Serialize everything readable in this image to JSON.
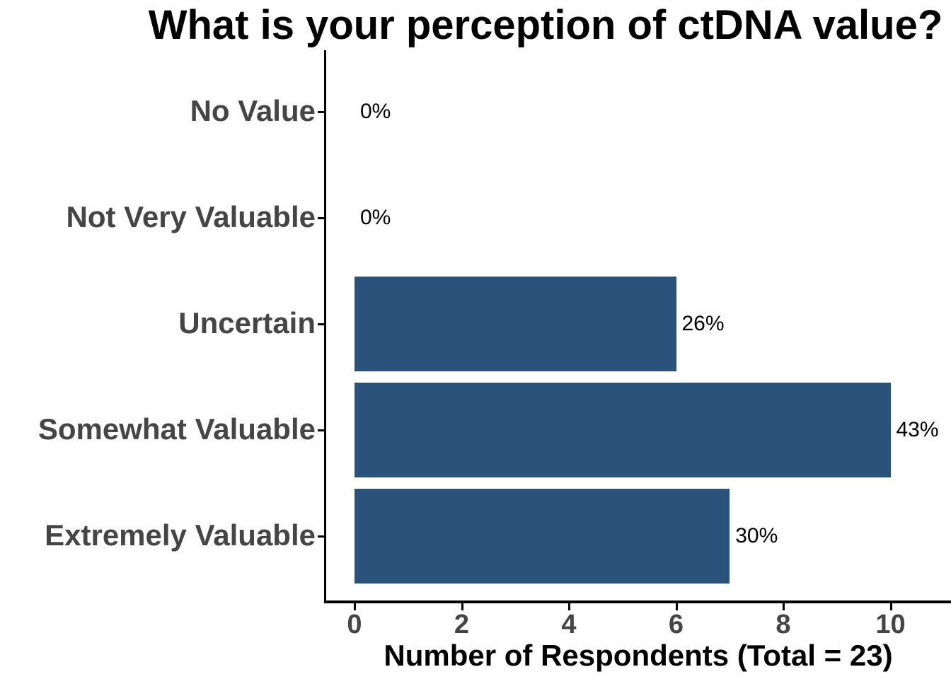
{
  "chart_data": {
    "type": "bar",
    "orientation": "horizontal",
    "title": "What is your perception of ctDNA value?",
    "xlabel": "Number of Respondents (Total = 23)",
    "ylabel": "",
    "total_respondents": 23,
    "categories": [
      "No Value",
      "Not Very Valuable",
      "Uncertain",
      "Somewhat Valuable",
      "Extremely Valuable"
    ],
    "values": [
      0,
      0,
      6,
      10,
      7
    ],
    "percent_labels": [
      "0%",
      "0%",
      "26%",
      "43%",
      "30%"
    ],
    "xticks": [
      "0",
      "2",
      "4",
      "6",
      "8",
      "10"
    ],
    "xtick_values": [
      0,
      2,
      4,
      6,
      8,
      10
    ],
    "xlim": [
      0,
      10
    ],
    "grid": false,
    "legend_position": "none",
    "colors": {
      "bar": "#2A527A",
      "axis_text": "#454545",
      "axis_line": "#000000",
      "title_text": "#000000",
      "value_label_text": "#000000",
      "background": "#FFFFFF"
    }
  }
}
